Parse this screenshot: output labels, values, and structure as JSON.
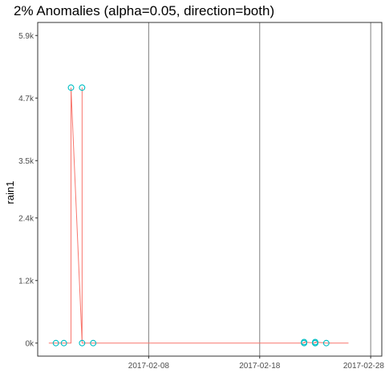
{
  "chart_data": {
    "type": "line",
    "title": "2% Anomalies (alpha=0.05, direction=both)",
    "xlabel": "",
    "ylabel": "rain1",
    "x_ticks": [
      "2017-02-08",
      "2017-02-18",
      "2017-02-28"
    ],
    "y_ticks": [
      "0k",
      "1.2k",
      "2.4k",
      "3.5k",
      "4.7k",
      "5.9k"
    ],
    "y_tick_values": [
      0,
      1200,
      2400,
      3500,
      4700,
      5900
    ],
    "xlim": [
      "2017-01-29",
      "2017-02-29"
    ],
    "ylim": [
      -250,
      6150
    ],
    "grid": {
      "major_x": true,
      "major_y": false
    },
    "x_gridlines": [
      "2017-02-08",
      "2017-02-18",
      "2017-02-28"
    ],
    "colors": {
      "line": "#f8766d",
      "anomaly_point": "#00bfc4",
      "grid": "#808080",
      "axis_text": "#4d4d4d"
    },
    "series": [
      {
        "values": [
          {
            "x": "2017-01-30",
            "y": 0
          },
          {
            "x": "2017-02-01",
            "y": 0
          },
          {
            "x": "2017-02-01",
            "y": 4900
          },
          {
            "x": "2017-02-02",
            "y": 0
          },
          {
            "x": "2017-02-02",
            "y": 4900
          },
          {
            "x": "2017-02-02",
            "y": 0
          },
          {
            "x": "2017-02-22",
            "y": 0
          },
          {
            "x": "2017-02-22",
            "y": 20
          },
          {
            "x": "2017-02-23",
            "y": 0
          },
          {
            "x": "2017-02-23",
            "y": 20
          },
          {
            "x": "2017-02-24",
            "y": 0
          },
          {
            "x": "2017-02-26",
            "y": 0
          }
        ]
      }
    ],
    "anomalies": [
      {
        "x": "2017-01-31",
        "y": 0
      },
      {
        "x": "2017-01-31",
        "y": 0
      },
      {
        "x": "2017-02-01",
        "y": 4900
      },
      {
        "x": "2017-02-02",
        "y": 4900
      },
      {
        "x": "2017-02-02",
        "y": 0
      },
      {
        "x": "2017-02-03",
        "y": 0
      },
      {
        "x": "2017-02-22",
        "y": 0
      },
      {
        "x": "2017-02-22",
        "y": 20
      },
      {
        "x": "2017-02-23",
        "y": 20
      },
      {
        "x": "2017-02-23",
        "y": 0
      },
      {
        "x": "2017-02-23",
        "y": 0
      },
      {
        "x": "2017-02-24",
        "y": 0
      }
    ]
  }
}
